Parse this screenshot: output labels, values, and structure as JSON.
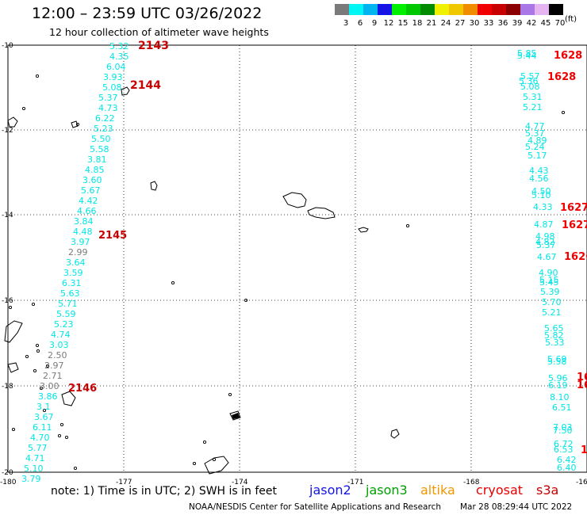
{
  "header": {
    "title": "12:00 – 23:59 UTC 03/26/2022",
    "subtitle": "12 hour collection of altimeter wave heights"
  },
  "color_scale": {
    "labels": [
      "3",
      "6",
      "9",
      "12",
      "15",
      "18",
      "21",
      "24",
      "27",
      "30",
      "33",
      "36",
      "39",
      "42",
      "45",
      "70"
    ],
    "colors": [
      "#7a7a7a",
      "#00f5f5",
      "#00b4f0",
      "#1414e6",
      "#00f000",
      "#00c800",
      "#008c00",
      "#f0f000",
      "#f0c800",
      "#f08c00",
      "#f00000",
      "#c80000",
      "#8c0000",
      "#aa78e6",
      "#e6b4f0",
      "#000000"
    ],
    "unit": "(ft)"
  },
  "map": {
    "y_ticks": [
      "-10",
      "-12",
      "-14",
      "-16",
      "-18",
      "-20"
    ],
    "x_ticks": [
      "-180",
      "-177",
      "-174",
      "-171",
      "-168",
      "-16"
    ],
    "track_times": [
      {
        "label": "2143",
        "color": "#c80000"
      },
      {
        "label": "2144",
        "color": "#c80000"
      },
      {
        "label": "2145",
        "color": "#c80000"
      },
      {
        "label": "2146",
        "color": "#c80000"
      },
      {
        "label": "1628",
        "color": "#f00000"
      },
      {
        "label": "1628",
        "color": "#f00000"
      },
      {
        "label": "1627",
        "color": "#f00000"
      },
      {
        "label": "1627",
        "color": "#f00000"
      },
      {
        "label": "1626",
        "color": "#f00000"
      },
      {
        "label": "16",
        "color": "#f00000"
      },
      {
        "label": "16",
        "color": "#f00000"
      },
      {
        "label": "1",
        "color": "#f00000"
      }
    ],
    "left_track": {
      "color": "#00e6e6",
      "values": [
        "5.32",
        "4.35",
        "6.04",
        "3.93",
        "5.08",
        "5.37",
        "4.73",
        "6.22",
        "5.23",
        "5.50",
        "5.58",
        "3.81",
        "4.85",
        "3.60",
        "5.67",
        "4.42",
        "4.66",
        "3.84",
        "4.48",
        "3.97",
        "2.99",
        "3.64",
        "3.59",
        "6.31",
        "5.63",
        "5.71",
        "5.59",
        "5.23",
        "4.74",
        "3.03",
        "2.50",
        "2.97",
        "2.71",
        "3.00",
        "3.86",
        "3.1",
        "3.67",
        "6.11",
        "4.70",
        "5.77",
        "4.71",
        "5.10",
        "3.79"
      ],
      "gray_values": [
        "2.99",
        "2.50",
        "2.97",
        "2.71",
        "3.00"
      ]
    },
    "right_track": {
      "color": "#00e6e6",
      "values": [
        "5.85",
        "5.44",
        "5.57",
        "5.36",
        "5.08",
        "5.31",
        "5.21",
        "4.77",
        "5.37",
        "4.89",
        "5.24",
        "5.17",
        "4.43",
        "4.56",
        "4.50",
        "5.10",
        "4.33",
        "4.87",
        "4.98",
        "4.82",
        "5.37",
        "4.67",
        "4.90",
        "5.15",
        "5.45",
        "5.39",
        "5.70",
        "5.21",
        "5.65",
        "5.82",
        "5.33",
        "5.69",
        "5.58",
        "5.96",
        "6.19",
        "8.10",
        "6.51",
        "7.03",
        "7.50",
        "6.72",
        "6.53",
        "6.42",
        "6.40"
      ]
    }
  },
  "footer": {
    "note": "note:  1) Time is in UTC; 2) SWH is in feet",
    "missions": [
      {
        "name": "jason2",
        "color": "#1414e6"
      },
      {
        "name": "jason3",
        "color": "#00a000"
      },
      {
        "name": "altika",
        "color": "#f09600"
      },
      {
        "name": "cryosat",
        "color": "#e60000"
      },
      {
        "name": "s3a",
        "color": "#c80000"
      }
    ],
    "credit": "NOAA/NESDIS Center for Satellite Applications and Research",
    "timestamp": "Mar 28 08:29:44 UTC 2022"
  }
}
